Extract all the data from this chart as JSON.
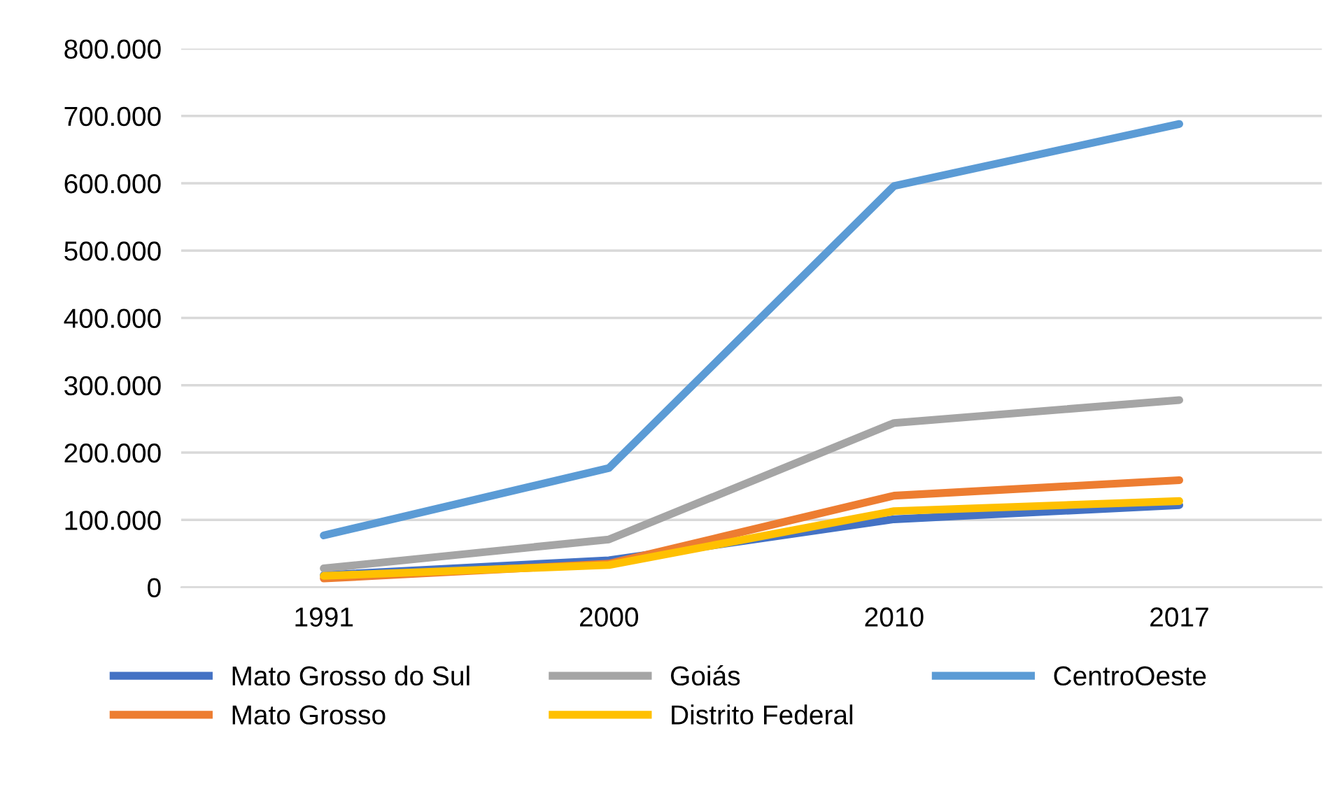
{
  "chart_data": {
    "type": "line",
    "categories": [
      "1991",
      "2000",
      "2010",
      "2017"
    ],
    "series": [
      {
        "name": "Mato Grosso do Sul",
        "color": "#4472c4",
        "values": [
          18000,
          40000,
          101000,
          122000
        ]
      },
      {
        "name": "Mato Grosso",
        "color": "#ed7d31",
        "values": [
          13000,
          35000,
          136000,
          159000
        ]
      },
      {
        "name": "Goiás",
        "color": "#a5a5a5",
        "values": [
          28000,
          71000,
          244000,
          278000
        ]
      },
      {
        "name": "Distrito Federal",
        "color": "#ffc000",
        "values": [
          17000,
          33000,
          113000,
          128000
        ]
      },
      {
        "name": "CentroOeste",
        "color": "#5b9bd5",
        "values": [
          77000,
          177000,
          596000,
          688000
        ]
      }
    ],
    "ylim": [
      0,
      800000
    ],
    "yticks": [
      0,
      {
        "value": 100000,
        "label": "100.000"
      },
      {
        "value": 200000,
        "label": "200.000"
      },
      {
        "value": 300000,
        "label": "300.000"
      },
      {
        "value": 400000,
        "label": "400.000"
      },
      {
        "value": 500000,
        "label": "500.000"
      },
      {
        "value": 600000,
        "label": "600.000"
      },
      {
        "value": 700000,
        "label": "700.000"
      },
      {
        "value": 800000,
        "label": "800.000"
      }
    ],
    "grid": "y",
    "legend": "bottom",
    "marker": "none",
    "line_style": "solid"
  }
}
